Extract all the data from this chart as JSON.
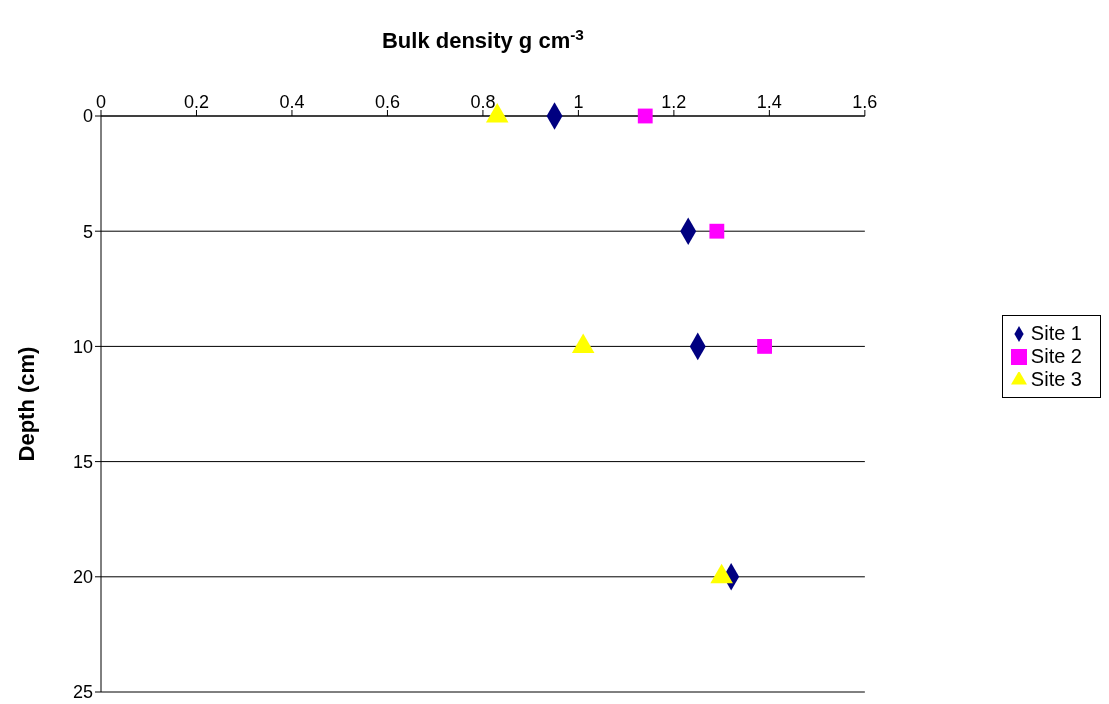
{
  "chart_data": {
    "type": "scatter",
    "xlabel": "Bulk density g cm$^{-3}$",
    "ylabel": "Depth (cm)",
    "xlim": [
      0,
      1.6
    ],
    "xticks": [
      0,
      0.2,
      0.4,
      0.6,
      0.8,
      1,
      1.2,
      1.4,
      1.6
    ],
    "ylim": [
      25,
      0
    ],
    "yticks": [
      0,
      5,
      10,
      15,
      20,
      25
    ],
    "grid": "y",
    "legend": "right",
    "series": [
      {
        "name": "Site 1",
        "color": "#000080",
        "marker": "diamond",
        "x": [
          0.95,
          1.23,
          1.25,
          1.32
        ],
        "values": [
          0,
          5,
          10,
          20
        ]
      },
      {
        "name": "Site 2",
        "color": "#ff00ff",
        "marker": "square",
        "x": [
          1.14,
          1.29,
          1.39
        ],
        "values": [
          0,
          5,
          10
        ]
      },
      {
        "name": "Site 3",
        "color": "#ffff00",
        "marker": "triangle",
        "x": [
          0.83,
          1.01,
          1.3
        ],
        "values": [
          0,
          10,
          20
        ]
      }
    ]
  }
}
